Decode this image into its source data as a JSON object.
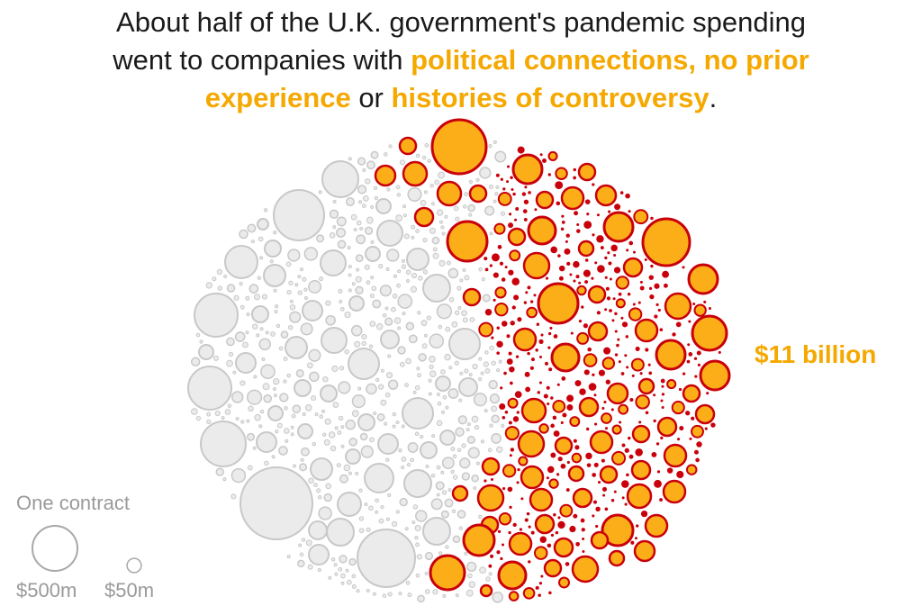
{
  "title": {
    "line1": "About half of the U.K. government's pandemic spending",
    "line2_plain": "went to companies with ",
    "line2_highlight": "political connections, no prior",
    "line3_highlight_a": "experience",
    "line3_plain": " or ",
    "line3_highlight_b": "histories of controversy",
    "line3_end": "."
  },
  "chart_data": {
    "type": "bubble-cluster",
    "highlight_group": {
      "label": "$11 billion",
      "fill": "#fbae17",
      "stroke": "#c9000b",
      "small_fill": "#c9000b"
    },
    "other_group": {
      "fill": "#ebebeb",
      "stroke": "#c8c8c8"
    },
    "legend": {
      "title": "One contract",
      "items": [
        {
          "label": "$500m",
          "value_millions": 500
        },
        {
          "label": "$50m",
          "value_millions": 50
        }
      ]
    }
  }
}
